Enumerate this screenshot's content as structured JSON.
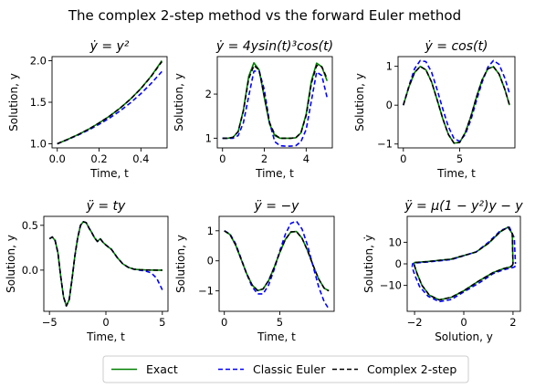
{
  "figure_title": "The complex 2-step method vs the forward Euler method",
  "legend": {
    "entries": [
      {
        "label": "Exact",
        "color": "#008000",
        "dash": "solid"
      },
      {
        "label": "Classic Euler",
        "color": "#0000ff",
        "dash": "dashed"
      },
      {
        "label": "Complex 2-step",
        "color": "#000000",
        "dash": "dashed"
      }
    ],
    "placement": "bottom-center"
  },
  "chart_data": [
    {
      "type": "line",
      "title": "ẏ = y²",
      "xlabel": "Time, t",
      "ylabel": "Solution, y",
      "xlim": [
        -0.025,
        0.525
      ],
      "ylim": [
        0.95,
        2.05
      ],
      "xticks": [
        0.0,
        0.2,
        0.4
      ],
      "xticklabels": [
        "0.0",
        "0.2",
        "0.4"
      ],
      "yticks": [
        1.0,
        1.5,
        2.0
      ],
      "yticklabels": [
        "1.0",
        "1.5",
        "2.0"
      ],
      "series": [
        {
          "name": "Exact",
          "x": [
            0,
            0.05,
            0.1,
            0.15,
            0.2,
            0.25,
            0.3,
            0.35,
            0.4,
            0.45,
            0.5
          ],
          "y": [
            1.0,
            1.053,
            1.111,
            1.176,
            1.25,
            1.333,
            1.429,
            1.538,
            1.667,
            1.818,
            2.0
          ]
        },
        {
          "name": "Classic Euler",
          "x": [
            0,
            0.05,
            0.1,
            0.15,
            0.2,
            0.25,
            0.3,
            0.35,
            0.4,
            0.45,
            0.5
          ],
          "y": [
            1.0,
            1.05,
            1.105,
            1.166,
            1.234,
            1.31,
            1.396,
            1.493,
            1.604,
            1.73,
            1.87
          ]
        },
        {
          "name": "Complex 2-step",
          "x": [
            0,
            0.05,
            0.1,
            0.15,
            0.2,
            0.25,
            0.3,
            0.35,
            0.4,
            0.45,
            0.5
          ],
          "y": [
            1.0,
            1.053,
            1.111,
            1.176,
            1.25,
            1.333,
            1.428,
            1.537,
            1.665,
            1.815,
            1.99
          ]
        }
      ]
    },
    {
      "type": "line",
      "title": "ẏ = 4ysin(t)³cos(t)",
      "xlabel": "Time, t",
      "ylabel": "Solution, y",
      "xlim": [
        -0.25,
        5.25
      ],
      "ylim": [
        0.78,
        2.85
      ],
      "xticks": [
        0,
        2,
        4
      ],
      "xticklabels": [
        "0",
        "2",
        "4"
      ],
      "yticks": [
        1,
        2
      ],
      "yticklabels": [
        "1",
        "2"
      ],
      "series": [
        {
          "name": "Exact",
          "x": [
            0,
            0.25,
            0.5,
            0.75,
            1.0,
            1.25,
            1.5,
            1.75,
            2.0,
            2.25,
            2.5,
            2.75,
            3.0,
            3.25,
            3.5,
            3.75,
            4.0,
            4.25,
            4.5,
            4.75,
            5.0
          ],
          "y": [
            1.0,
            1.0,
            1.02,
            1.15,
            1.64,
            2.4,
            2.71,
            2.55,
            1.92,
            1.32,
            1.06,
            1.0,
            1.0,
            1.0,
            1.01,
            1.12,
            1.55,
            2.3,
            2.7,
            2.62,
            2.3
          ]
        },
        {
          "name": "Classic Euler",
          "x": [
            0,
            0.25,
            0.5,
            0.75,
            1.0,
            1.25,
            1.5,
            1.75,
            2.0,
            2.25,
            2.5,
            2.75,
            3.0,
            3.25,
            3.5,
            3.75,
            4.0,
            4.25,
            4.5,
            4.75,
            5.0
          ],
          "y": [
            1.0,
            1.0,
            1.0,
            1.06,
            1.35,
            1.95,
            2.52,
            2.52,
            2.1,
            1.35,
            0.92,
            0.83,
            0.82,
            0.82,
            0.83,
            0.92,
            1.2,
            1.85,
            2.5,
            2.42,
            1.92
          ]
        },
        {
          "name": "Complex 2-step",
          "x": [
            0,
            0.25,
            0.5,
            0.75,
            1.0,
            1.25,
            1.5,
            1.75,
            2.0,
            2.25,
            2.5,
            2.75,
            3.0,
            3.25,
            3.5,
            3.75,
            4.0,
            4.25,
            4.5,
            4.75,
            5.0
          ],
          "y": [
            1.0,
            1.0,
            1.02,
            1.15,
            1.62,
            2.35,
            2.65,
            2.55,
            1.95,
            1.35,
            1.08,
            1.0,
            1.0,
            1.0,
            1.01,
            1.12,
            1.52,
            2.25,
            2.65,
            2.62,
            2.35
          ]
        }
      ]
    },
    {
      "type": "line",
      "title": "ẏ = cos(t)",
      "xlabel": "Time, t",
      "ylabel": "Solution, y",
      "xlim": [
        -0.47,
        9.9
      ],
      "ylim": [
        -1.1,
        1.25
      ],
      "xticks": [
        0,
        5
      ],
      "xticklabels": [
        "0",
        "5"
      ],
      "yticks": [
        -1,
        0,
        1
      ],
      "yticklabels": [
        "−1",
        "0",
        "1"
      ],
      "series": [
        {
          "name": "Exact",
          "x": [
            0,
            0.5,
            1.0,
            1.5,
            2.0,
            2.5,
            3.0,
            3.5,
            4.0,
            4.5,
            5.0,
            5.5,
            6.0,
            6.5,
            7.0,
            7.5,
            8.0,
            8.5,
            9.0,
            9.42
          ],
          "y": [
            0.0,
            0.479,
            0.841,
            0.997,
            0.909,
            0.598,
            0.141,
            -0.351,
            -0.757,
            -0.978,
            -0.959,
            -0.706,
            -0.279,
            0.215,
            0.657,
            0.938,
            0.989,
            0.798,
            0.412,
            0.0
          ]
        },
        {
          "name": "Classic Euler",
          "x": [
            0,
            0.5,
            1.0,
            1.5,
            2.0,
            2.5,
            3.0,
            3.5,
            4.0,
            4.5,
            5.0,
            5.5,
            6.0,
            6.5,
            7.0,
            7.5,
            8.0,
            8.5,
            9.0,
            9.42
          ],
          "y": [
            0.0,
            0.5,
            0.94,
            1.15,
            1.12,
            0.85,
            0.4,
            -0.1,
            -0.56,
            -0.86,
            -0.93,
            -0.75,
            -0.37,
            0.13,
            0.6,
            0.98,
            1.15,
            1.05,
            0.7,
            0.3
          ]
        },
        {
          "name": "Complex 2-step",
          "x": [
            0,
            0.5,
            1.0,
            1.5,
            2.0,
            2.5,
            3.0,
            3.5,
            4.0,
            4.5,
            5.0,
            5.5,
            6.0,
            6.5,
            7.0,
            7.5,
            8.0,
            8.5,
            9.0,
            9.42
          ],
          "y": [
            0.0,
            0.479,
            0.841,
            0.997,
            0.909,
            0.598,
            0.141,
            -0.351,
            -0.757,
            -0.978,
            -0.959,
            -0.706,
            -0.279,
            0.215,
            0.657,
            0.938,
            0.989,
            0.798,
            0.412,
            0.0
          ]
        }
      ]
    },
    {
      "type": "line",
      "title": "ÿ = ty",
      "xlabel": "Time, t",
      "ylabel": "Solution, y",
      "xlim": [
        -5.5,
        5.5
      ],
      "ylim": [
        -0.46,
        0.6
      ],
      "xticks": [
        -5,
        0,
        5
      ],
      "xticklabels": [
        "−5",
        "0",
        "5"
      ],
      "yticks": [
        0.0,
        0.5
      ],
      "yticklabels": [
        "0.0",
        "0.5"
      ],
      "series": [
        {
          "name": "Exact",
          "x": [
            -5.0,
            -4.75,
            -4.5,
            -4.25,
            -4.0,
            -3.75,
            -3.5,
            -3.25,
            -3.0,
            -2.75,
            -2.5,
            -2.25,
            -2.0,
            -1.75,
            -1.5,
            -1.25,
            -1.0,
            -0.75,
            -0.5,
            -0.25,
            0.0,
            0.5,
            1.0,
            1.5,
            2.0,
            2.5,
            3.0,
            3.5,
            4.0,
            4.5,
            5.0
          ],
          "y": [
            0.35,
            0.37,
            0.33,
            0.19,
            -0.07,
            -0.3,
            -0.4,
            -0.33,
            -0.1,
            0.16,
            0.36,
            0.5,
            0.54,
            0.53,
            0.47,
            0.42,
            0.36,
            0.32,
            0.35,
            0.31,
            0.28,
            0.23,
            0.14,
            0.07,
            0.03,
            0.01,
            0.005,
            0.002,
            0.001,
            0.0,
            0.0
          ]
        },
        {
          "name": "Classic Euler",
          "x": [
            -5.0,
            -4.75,
            -4.5,
            -4.25,
            -4.0,
            -3.75,
            -3.5,
            -3.25,
            -3.0,
            -2.75,
            -2.5,
            -2.25,
            -2.0,
            -1.75,
            -1.5,
            -1.25,
            -1.0,
            -0.75,
            -0.5,
            -0.25,
            0.0,
            0.5,
            1.0,
            1.5,
            2.0,
            2.5,
            3.0,
            3.5,
            4.0,
            4.5,
            5.0
          ],
          "y": [
            0.35,
            0.37,
            0.33,
            0.19,
            -0.07,
            -0.3,
            -0.4,
            -0.33,
            -0.1,
            0.16,
            0.36,
            0.5,
            0.54,
            0.53,
            0.47,
            0.42,
            0.36,
            0.32,
            0.35,
            0.31,
            0.28,
            0.23,
            0.14,
            0.07,
            0.03,
            0.01,
            0.0,
            -0.01,
            -0.03,
            -0.09,
            -0.22
          ]
        },
        {
          "name": "Complex 2-step",
          "x": [
            -5.0,
            -4.75,
            -4.5,
            -4.25,
            -4.0,
            -3.75,
            -3.5,
            -3.25,
            -3.0,
            -2.75,
            -2.5,
            -2.25,
            -2.0,
            -1.75,
            -1.5,
            -1.25,
            -1.0,
            -0.75,
            -0.5,
            -0.25,
            0.0,
            0.5,
            1.0,
            1.5,
            2.0,
            2.5,
            3.0,
            3.5,
            4.0,
            4.5,
            5.0
          ],
          "y": [
            0.35,
            0.37,
            0.33,
            0.19,
            -0.07,
            -0.3,
            -0.4,
            -0.33,
            -0.1,
            0.16,
            0.36,
            0.5,
            0.54,
            0.53,
            0.47,
            0.42,
            0.36,
            0.32,
            0.35,
            0.31,
            0.28,
            0.23,
            0.14,
            0.07,
            0.03,
            0.01,
            0.005,
            0.002,
            0.001,
            0.0,
            0.0
          ]
        }
      ]
    },
    {
      "type": "line",
      "title": "ÿ = −y",
      "xlabel": "Time, t",
      "ylabel": "Solution, y",
      "xlim": [
        -0.47,
        9.9
      ],
      "ylim": [
        -1.68,
        1.48
      ],
      "xticks": [
        0,
        5
      ],
      "xticklabels": [
        "0",
        "5"
      ],
      "yticks": [
        -1,
        0,
        1
      ],
      "yticklabels": [
        "−1",
        "0",
        "1"
      ],
      "series": [
        {
          "name": "Exact",
          "x": [
            0,
            0.5,
            1.0,
            1.5,
            2.0,
            2.5,
            3.0,
            3.5,
            4.0,
            4.5,
            5.0,
            5.5,
            6.0,
            6.5,
            7.0,
            7.5,
            8.0,
            8.5,
            9.0,
            9.42
          ],
          "y": [
            1.0,
            0.878,
            0.54,
            0.071,
            -0.416,
            -0.801,
            -0.99,
            -0.936,
            -0.654,
            -0.211,
            0.284,
            0.709,
            0.96,
            0.977,
            0.754,
            0.347,
            -0.146,
            -0.602,
            -0.911,
            -1.0
          ]
        },
        {
          "name": "Classic Euler",
          "x": [
            0,
            0.5,
            1.0,
            1.5,
            2.0,
            2.5,
            3.0,
            3.5,
            4.0,
            4.5,
            5.0,
            5.5,
            6.0,
            6.5,
            7.0,
            7.5,
            8.0,
            8.5,
            9.0,
            9.42
          ],
          "y": [
            1.0,
            0.9,
            0.58,
            0.09,
            -0.42,
            -0.86,
            -1.1,
            -1.1,
            -0.8,
            -0.28,
            0.33,
            0.88,
            1.25,
            1.32,
            1.06,
            0.52,
            -0.18,
            -0.86,
            -1.36,
            -1.6
          ]
        },
        {
          "name": "Complex 2-step",
          "x": [
            0,
            0.5,
            1.0,
            1.5,
            2.0,
            2.5,
            3.0,
            3.5,
            4.0,
            4.5,
            5.0,
            5.5,
            6.0,
            6.5,
            7.0,
            7.5,
            8.0,
            8.5,
            9.0,
            9.42
          ],
          "y": [
            1.0,
            0.878,
            0.54,
            0.071,
            -0.416,
            -0.801,
            -0.99,
            -0.936,
            -0.654,
            -0.211,
            0.284,
            0.709,
            0.96,
            0.977,
            0.754,
            0.347,
            -0.146,
            -0.602,
            -0.911,
            -1.0
          ]
        }
      ]
    },
    {
      "type": "line",
      "title": "ÿ = μ(1 − y²)y − y",
      "xlabel": "Solution, y",
      "ylabel": "Solution, ẏ",
      "xlim": [
        -2.3,
        2.3
      ],
      "ylim": [
        -22,
        22
      ],
      "xticks": [
        -2,
        0,
        2
      ],
      "xticklabels": [
        "−2",
        "0",
        "2"
      ],
      "yticks": [
        -10,
        0,
        10
      ],
      "yticklabels": [
        "−10",
        "0",
        "10"
      ],
      "series": [
        {
          "name": "Exact",
          "x": [
            2.0,
            1.98,
            1.9,
            1.6,
            1.2,
            0.6,
            0.0,
            -0.5,
            -1.0,
            -1.4,
            -1.7,
            -1.9,
            -2.0,
            -2.02,
            -2.0,
            -1.5,
            -0.5,
            0.5,
            1.0,
            1.5,
            1.8,
            1.97,
            2.0
          ],
          "y": [
            0.0,
            -0.6,
            -1.4,
            -2.3,
            -4.0,
            -8.0,
            -12.5,
            -15.5,
            -16.7,
            -14.5,
            -10.0,
            -4.5,
            -1.0,
            0.0,
            0.6,
            1.0,
            2.2,
            5.5,
            9.5,
            15.0,
            17.0,
            14.0,
            0.0
          ]
        },
        {
          "name": "Classic Euler",
          "x": [
            2.1,
            2.05,
            1.95,
            1.6,
            1.2,
            0.6,
            0.0,
            -0.5,
            -1.0,
            -1.45,
            -1.8,
            -2.0,
            -2.1,
            -2.08,
            -2.0,
            -1.5,
            -0.5,
            0.5,
            1.0,
            1.5,
            1.85,
            2.05,
            2.1
          ],
          "y": [
            -1.0,
            -1.5,
            -1.8,
            -2.8,
            -4.5,
            -9.0,
            -13.0,
            -16.5,
            -17.5,
            -15.0,
            -10.5,
            -5.0,
            -1.5,
            0.0,
            0.4,
            0.8,
            2.0,
            5.5,
            10.0,
            15.5,
            17.0,
            12.0,
            0.0
          ]
        },
        {
          "name": "Complex 2-step",
          "x": [
            2.0,
            1.98,
            1.9,
            1.6,
            1.2,
            0.6,
            0.0,
            -0.5,
            -1.0,
            -1.4,
            -1.7,
            -1.9,
            -2.0,
            -2.02,
            -2.0,
            -1.5,
            -0.5,
            0.5,
            1.0,
            1.5,
            1.8,
            1.97,
            2.0
          ],
          "y": [
            0.0,
            -0.6,
            -1.4,
            -2.3,
            -4.0,
            -8.0,
            -12.5,
            -15.5,
            -16.7,
            -14.5,
            -10.0,
            -4.5,
            -1.0,
            0.0,
            0.6,
            1.0,
            2.2,
            5.5,
            9.5,
            15.0,
            17.0,
            14.0,
            0.0
          ]
        }
      ]
    }
  ]
}
